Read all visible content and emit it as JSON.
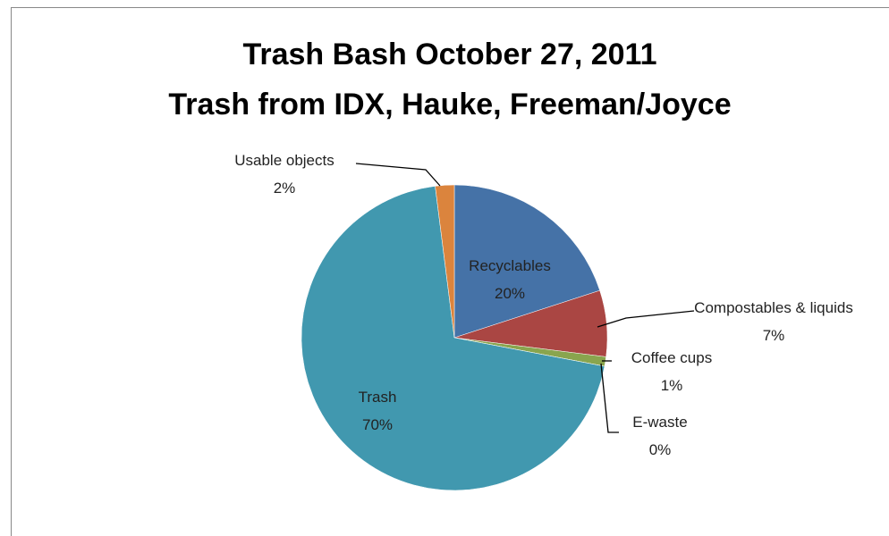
{
  "chart_data": {
    "type": "pie",
    "title": [
      "Trash Bash October 27, 2011",
      "Trash from IDX, Hauke, Freeman/Joyce"
    ],
    "categories": [
      "Recyclables",
      "Compostables & liquids",
      "Coffee cups",
      "E-waste",
      "Trash",
      "Usable objects"
    ],
    "values": [
      20,
      7,
      1,
      0,
      70,
      2
    ],
    "value_labels": [
      "20%",
      "7%",
      "1%",
      "0%",
      "70%",
      "2%"
    ],
    "colors": [
      "#4572a7",
      "#aa4643",
      "#89a54e",
      "#71588f",
      "#4198af",
      "#db843d"
    ]
  }
}
